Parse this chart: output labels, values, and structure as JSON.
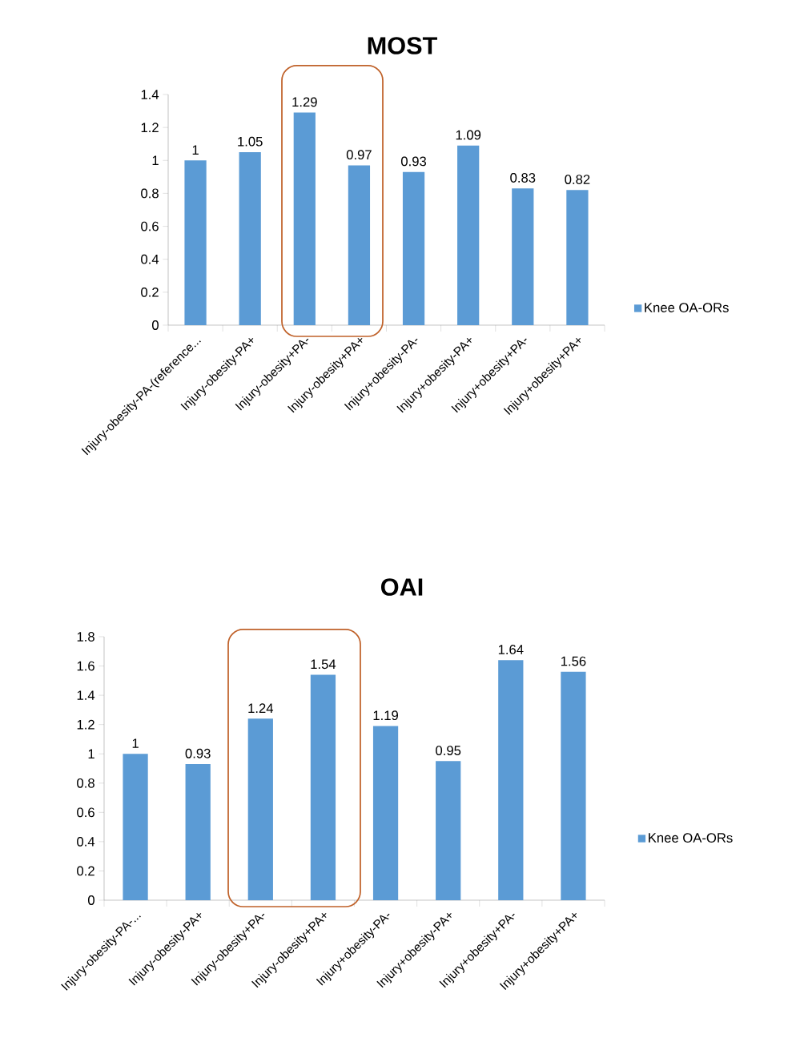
{
  "chart_data": [
    {
      "type": "bar",
      "title": "MOST",
      "categories": [
        "Injury-obesity-PA-(reference...",
        "Injury-obesity-PA+",
        "Injury-obesity+PA-",
        "Injury-obesity+PA+",
        "Injury+obesity-PA-",
        "Injury+obesity-PA+",
        "Injury+obesity+PA-",
        "Injury+obesity+PA+"
      ],
      "series": [
        {
          "name": "Knee OA-ORs",
          "color": "#5b9bd5",
          "values": [
            1,
            1.05,
            1.29,
            0.97,
            0.93,
            1.09,
            0.83,
            0.82
          ]
        }
      ],
      "ylim": [
        0,
        1.4
      ],
      "yticks": [
        0,
        0.2,
        0.4,
        0.6,
        0.8,
        1,
        1.2,
        1.4
      ],
      "data_labels": true,
      "legend": "right",
      "grid": false
    },
    {
      "type": "bar",
      "title": "OAI",
      "categories": [
        "Injury-obesity-PA-...",
        "Injury-obesity-PA+",
        "Injury-obesity+PA-",
        "Injury-obesity+PA+",
        "Injury+obesity-PA-",
        "Injury+obesity-PA+",
        "Injury+obesity+PA-",
        "Injury+obesity+PA+"
      ],
      "series": [
        {
          "name": "Knee OA-ORs",
          "color": "#5b9bd5",
          "values": [
            1,
            0.93,
            1.24,
            1.54,
            1.19,
            0.95,
            1.64,
            1.56
          ]
        }
      ],
      "ylim": [
        0,
        1.8
      ],
      "yticks": [
        0,
        0.2,
        0.4,
        0.6,
        0.8,
        1,
        1.2,
        1.4,
        1.6,
        1.8
      ],
      "data_labels": true,
      "legend": "right",
      "grid": false
    }
  ]
}
